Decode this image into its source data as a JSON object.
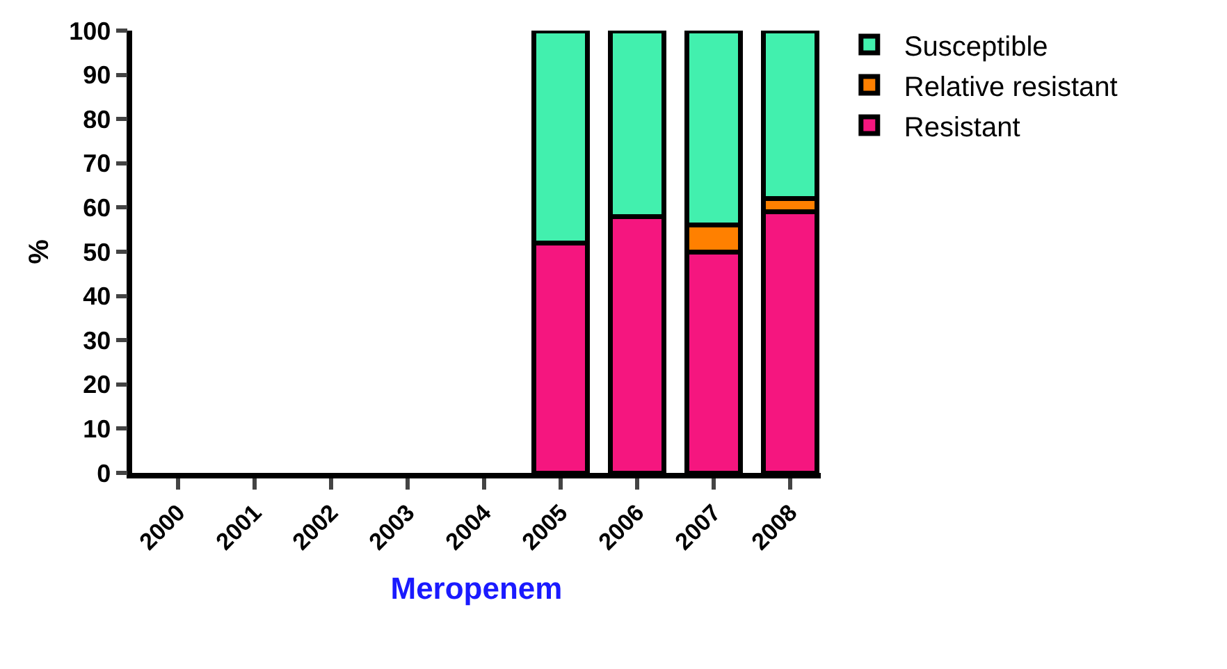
{
  "chart_data": {
    "type": "bar",
    "stacked": true,
    "xlabel": "Meropenem",
    "ylabel": "%",
    "categories": [
      "2000",
      "2001",
      "2002",
      "2003",
      "2004",
      "2005",
      "2006",
      "2007",
      "2008"
    ],
    "series": [
      {
        "name": "Resistant",
        "color": "#f5167f",
        "values": [
          null,
          null,
          null,
          null,
          null,
          52,
          58,
          50,
          59
        ]
      },
      {
        "name": "Relative resistant",
        "color": "#ff8000",
        "values": [
          null,
          null,
          null,
          null,
          null,
          null,
          0,
          6,
          3
        ]
      },
      {
        "name": "Susceptible",
        "color": "#42f0ae",
        "values": [
          null,
          null,
          null,
          null,
          null,
          48,
          42,
          44,
          38
        ]
      }
    ],
    "ylim": [
      0,
      100
    ],
    "yticks": [
      0,
      10,
      20,
      30,
      40,
      50,
      60,
      70,
      80,
      90,
      100
    ],
    "grid": false,
    "legend": "top right"
  }
}
